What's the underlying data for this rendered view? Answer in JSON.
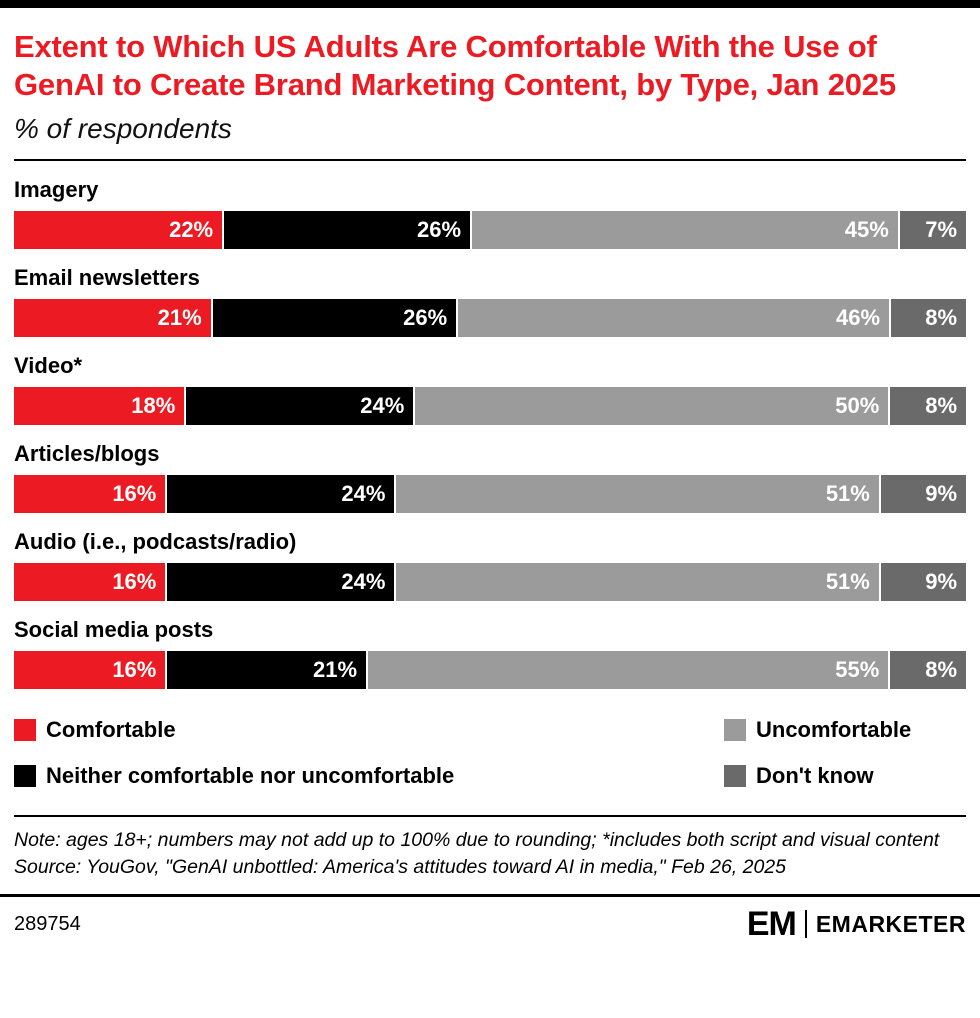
{
  "header": {
    "title": "Extent to Which US Adults Are Comfortable With the Use of GenAI to Create Brand Marketing Content, by Type, Jan 2025",
    "subtitle": "% of respondents"
  },
  "chart_data": {
    "type": "bar",
    "stacked": true,
    "orientation": "horizontal",
    "value_suffix": "%",
    "xlim": [
      0,
      100
    ],
    "grid": false,
    "legend_position": "bottom",
    "categories": [
      "Imagery",
      "Email newsletters",
      "Video*",
      "Articles/blogs",
      "Audio (i.e., podcasts/radio)",
      "Social media posts"
    ],
    "series": [
      {
        "name": "Comfortable",
        "color": "#EC1B23",
        "values": [
          22,
          21,
          18,
          16,
          16,
          16
        ]
      },
      {
        "name": "Neither comfortable nor uncomfortable",
        "color": "#000000",
        "values": [
          26,
          26,
          24,
          24,
          24,
          21
        ]
      },
      {
        "name": "Uncomfortable",
        "color": "#9B9B9B",
        "values": [
          45,
          46,
          50,
          51,
          51,
          55
        ]
      },
      {
        "name": "Don't know",
        "color": "#6A6A6A",
        "values": [
          7,
          8,
          8,
          9,
          9,
          8
        ]
      }
    ]
  },
  "notes": {
    "note_line": "Note: ages 18+; numbers may not add up to 100% due to rounding; *includes both script and visual content",
    "source_line": "Source: YouGov, \"GenAI unbottled: America's attitudes toward AI in media,\" Feb 26, 2025"
  },
  "footer": {
    "chart_id": "289754",
    "logo_short": "EM",
    "logo_text": "EMARKETER"
  }
}
